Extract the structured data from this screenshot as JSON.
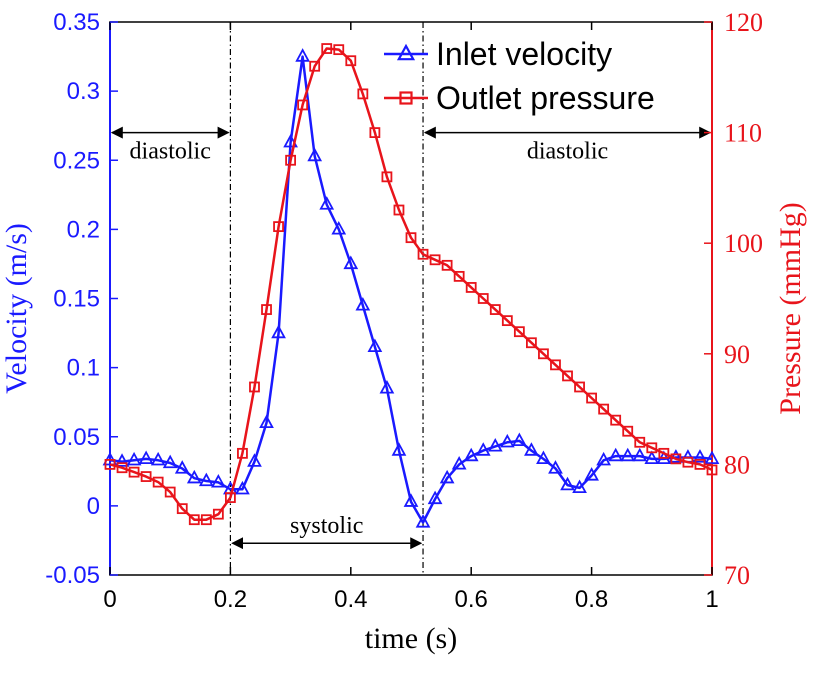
{
  "chart_data": {
    "type": "line",
    "xlabel": "time (s)",
    "ylabel_left": "Velocity (m/s)",
    "ylabel_right": "Pressure (mmHg)",
    "xlim": [
      0,
      1
    ],
    "ylim_left": [
      -0.05,
      0.35
    ],
    "ylim_right": [
      70,
      120
    ],
    "x_ticks": [
      "0",
      "0.2",
      "0.4",
      "0.6",
      "0.8",
      "1"
    ],
    "y_left_ticks": [
      "-0.05",
      "0",
      "0.05",
      "0.1",
      "0.15",
      "0.2",
      "0.25",
      "0.3",
      "0.35"
    ],
    "y_right_ticks": [
      "70",
      "80",
      "90",
      "100",
      "110",
      "120"
    ],
    "colors": {
      "velocity": "#1a1aff",
      "pressure": "#e8141b",
      "annotation": "#000000"
    },
    "series": [
      {
        "name": "Inlet velocity",
        "axis": "left",
        "marker": "triangle",
        "x": [
          0,
          0.02,
          0.04,
          0.06,
          0.08,
          0.1,
          0.12,
          0.14,
          0.16,
          0.18,
          0.2,
          0.22,
          0.24,
          0.26,
          0.28,
          0.3,
          0.32,
          0.34,
          0.36,
          0.38,
          0.4,
          0.42,
          0.44,
          0.46,
          0.48,
          0.5,
          0.52,
          0.54,
          0.56,
          0.58,
          0.6,
          0.62,
          0.64,
          0.66,
          0.68,
          0.7,
          0.72,
          0.74,
          0.76,
          0.78,
          0.8,
          0.82,
          0.84,
          0.86,
          0.88,
          0.9,
          0.92,
          0.94,
          0.96,
          0.98,
          1.0
        ],
        "values": [
          0.033,
          0.032,
          0.033,
          0.034,
          0.033,
          0.031,
          0.027,
          0.02,
          0.018,
          0.017,
          0.012,
          0.012,
          0.032,
          0.06,
          0.125,
          0.263,
          0.325,
          0.253,
          0.218,
          0.2,
          0.175,
          0.145,
          0.115,
          0.085,
          0.04,
          0.003,
          -0.012,
          0.005,
          0.02,
          0.03,
          0.036,
          0.04,
          0.043,
          0.046,
          0.047,
          0.04,
          0.034,
          0.027,
          0.015,
          0.013,
          0.022,
          0.033,
          0.036,
          0.036,
          0.036,
          0.034,
          0.034,
          0.035,
          0.035,
          0.035,
          0.034
        ]
      },
      {
        "name": "Outlet pressure",
        "axis": "right",
        "marker": "square",
        "x": [
          0,
          0.02,
          0.04,
          0.06,
          0.08,
          0.1,
          0.12,
          0.14,
          0.16,
          0.18,
          0.2,
          0.22,
          0.24,
          0.26,
          0.28,
          0.3,
          0.32,
          0.34,
          0.36,
          0.38,
          0.4,
          0.42,
          0.44,
          0.46,
          0.48,
          0.5,
          0.52,
          0.54,
          0.56,
          0.58,
          0.6,
          0.62,
          0.64,
          0.66,
          0.68,
          0.7,
          0.72,
          0.74,
          0.76,
          0.78,
          0.8,
          0.82,
          0.84,
          0.86,
          0.88,
          0.9,
          0.92,
          0.94,
          0.96,
          0.98,
          1.0
        ],
        "values": [
          80,
          79.7,
          79.3,
          78.9,
          78.4,
          77.5,
          76,
          75,
          75,
          75.5,
          77,
          81,
          87,
          94,
          101.5,
          107.5,
          112.5,
          116,
          117.6,
          117.5,
          116.5,
          113.5,
          110,
          106,
          103,
          100.5,
          99,
          98.5,
          98,
          97,
          96,
          95,
          94,
          93,
          92,
          91,
          90,
          89,
          88,
          87,
          86,
          85,
          84,
          83,
          82,
          81.5,
          81,
          80.5,
          80.2,
          80,
          79.5
        ]
      }
    ],
    "legend": {
      "placement": "top-right",
      "entries": [
        "Inlet velocity",
        "Outlet pressure"
      ]
    },
    "annotations": [
      {
        "label": "diastolic",
        "x_start": 0,
        "x_end": 0.2,
        "y_value": 0.27,
        "axis": "left"
      },
      {
        "label": "systolic",
        "x_start": 0.2,
        "x_end": 0.52,
        "y_value": -0.027,
        "axis": "left"
      },
      {
        "label": "diastolic",
        "x_start": 0.52,
        "x_end": 1.0,
        "y_value": 0.27,
        "axis": "left"
      }
    ],
    "vlines": [
      0.2,
      0.52
    ]
  }
}
